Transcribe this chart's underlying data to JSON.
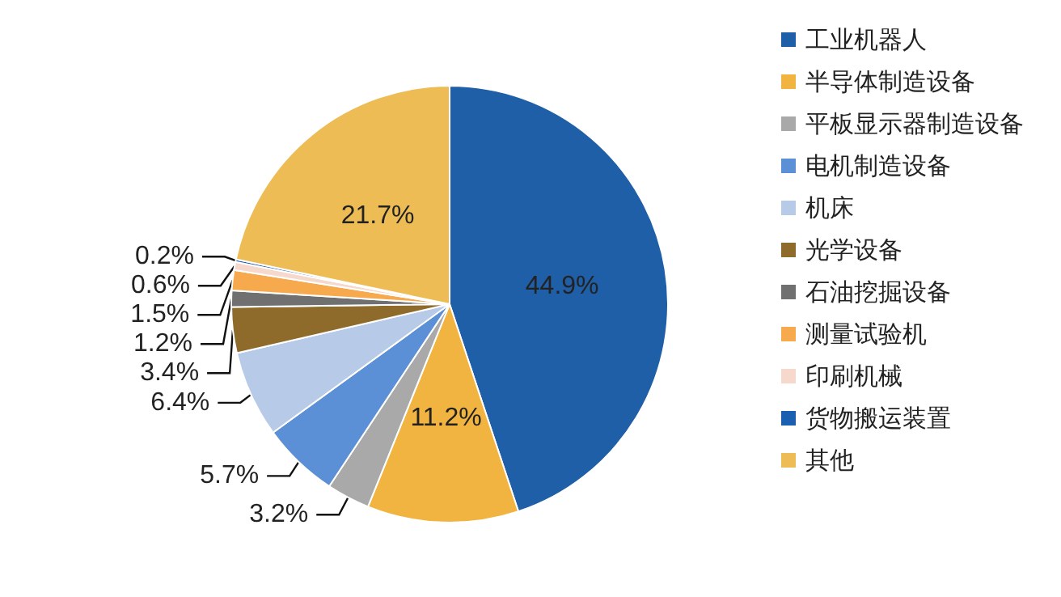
{
  "chart_data": {
    "type": "pie",
    "categories": [
      "工业机器人",
      "半导体制造设备",
      "平板显示器制造设备",
      "电机制造设备",
      "机床",
      "光学设备",
      "石油挖掘设备",
      "测量试验机",
      "印刷机械",
      "货物搬运装置",
      "其他"
    ],
    "values": [
      44.9,
      11.2,
      3.2,
      5.7,
      6.4,
      3.4,
      1.2,
      1.5,
      0.6,
      0.2,
      21.7
    ],
    "value_labels": [
      "44.9%",
      "11.2%",
      "3.2%",
      "5.7%",
      "6.4%",
      "3.4%",
      "1.2%",
      "1.5%",
      "0.6%",
      "0.2%",
      "21.7%"
    ],
    "colors": [
      "#1f5fa8",
      "#f2b441",
      "#a9a9a9",
      "#5b8fd6",
      "#b7cbe8",
      "#8f6b2b",
      "#707070",
      "#f7a94e",
      "#f6d8cc",
      "#1a5fb0",
      "#eebc55"
    ],
    "legend": "right"
  }
}
